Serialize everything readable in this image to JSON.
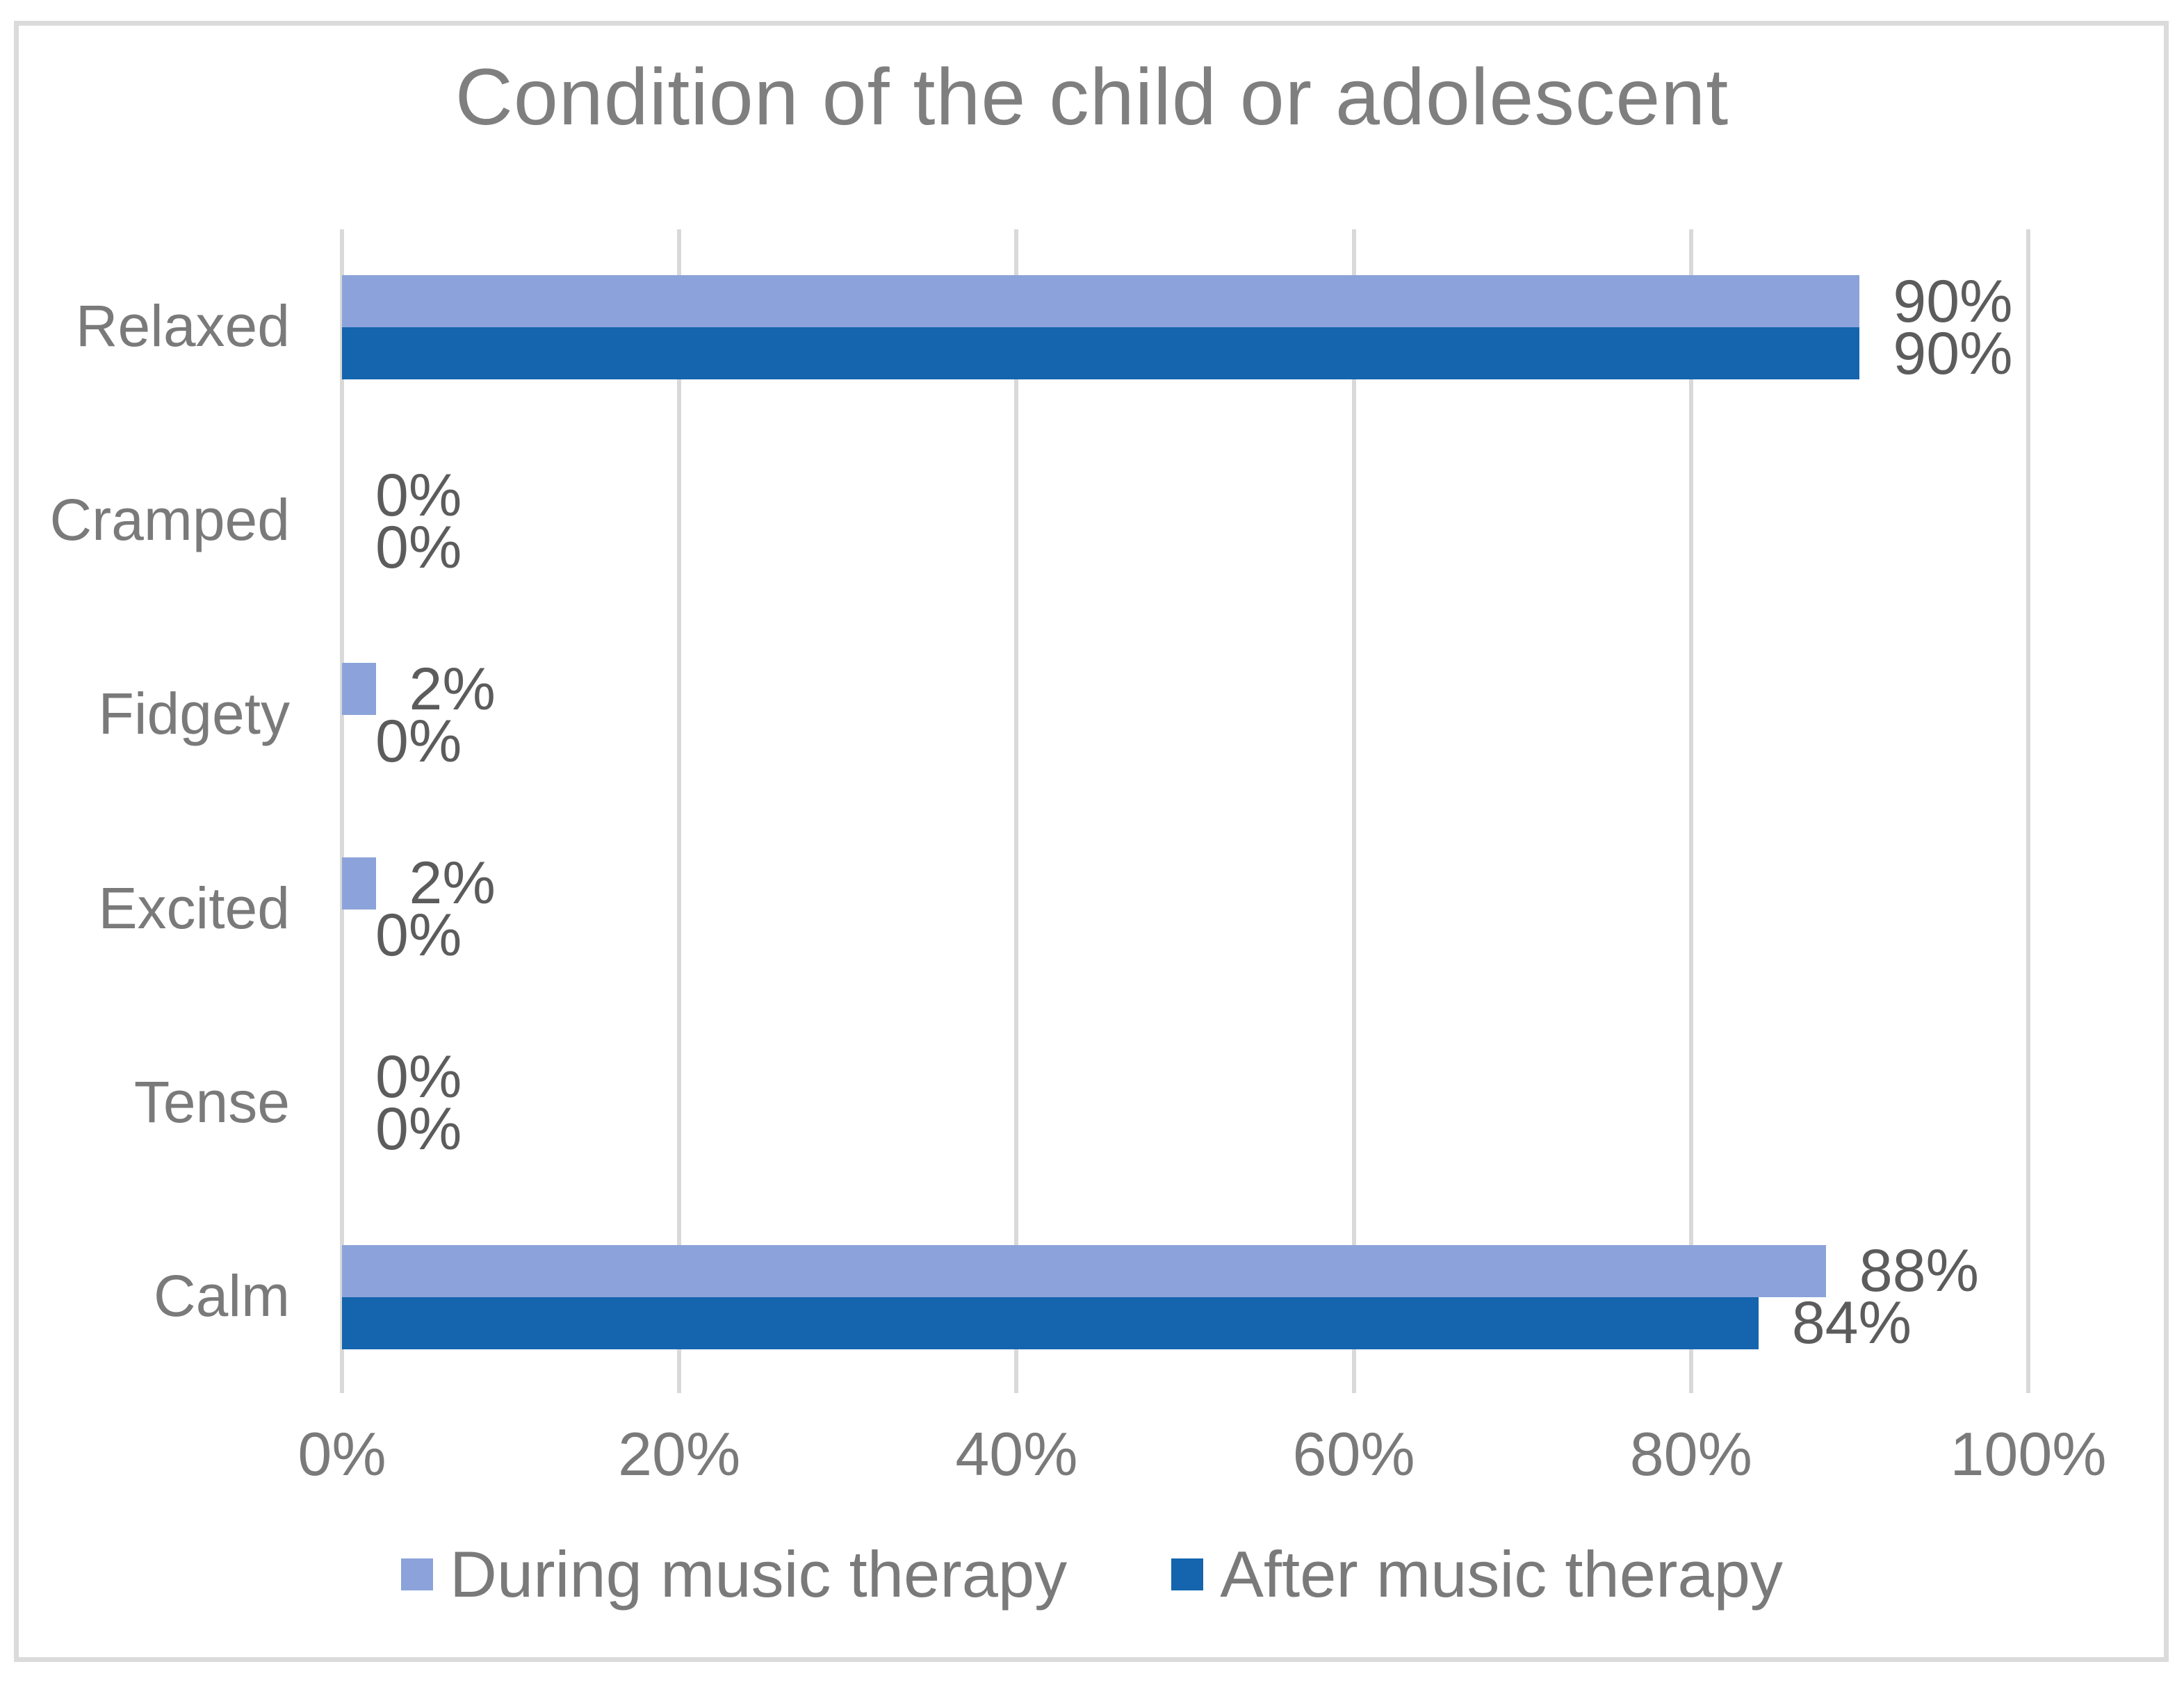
{
  "title": "Condition of the child or adolescent",
  "colors": {
    "series_during": "#8BA3DA",
    "series_after": "#1464AE",
    "gridline": "#D9D9D9",
    "frame_border": "#DBDBDB",
    "title_text": "#7F7F7F",
    "axis_text": "#7A7A7A",
    "data_label_text": "#5C5C5C"
  },
  "chart_data": {
    "type": "bar",
    "orientation": "horizontal",
    "title": "Condition of the child or adolescent",
    "categories": [
      "Relaxed",
      "Cramped",
      "Fidgety",
      "Excited",
      "Tense",
      "Calm"
    ],
    "series": [
      {
        "name": "During music therapy",
        "color": "#8BA3DA",
        "values": [
          90,
          0,
          2,
          2,
          0,
          88
        ],
        "labels": [
          "90%",
          "0%",
          "2%",
          "2%",
          "0%",
          "88%"
        ]
      },
      {
        "name": "After music therapy",
        "color": "#1464AE",
        "values": [
          90,
          0,
          0,
          0,
          0,
          84
        ],
        "labels": [
          "90%",
          "0%",
          "0%",
          "0%",
          "0%",
          "84%"
        ]
      }
    ],
    "x_axis": {
      "min": 0,
      "max": 100,
      "ticks": [
        "0%",
        "20%",
        "40%",
        "60%",
        "80%",
        "100%"
      ]
    },
    "grid": true,
    "legend_position": "bottom"
  }
}
